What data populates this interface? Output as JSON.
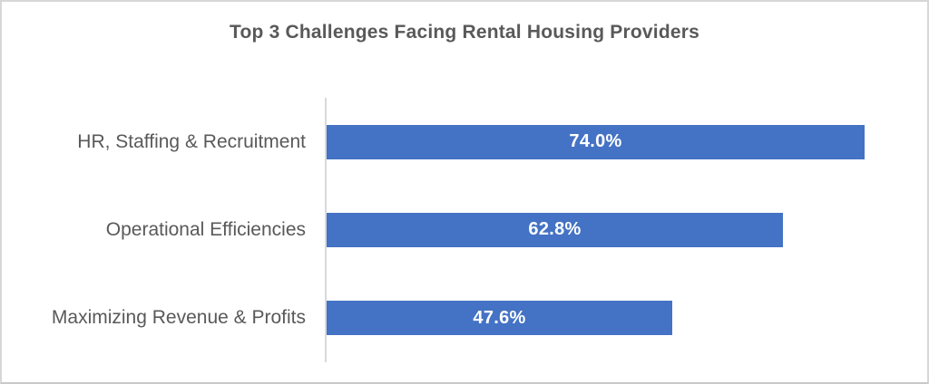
{
  "chart": {
    "title": "Top 3 Challenges Facing Rental Housing Providers"
  },
  "chart_data": {
    "type": "bar",
    "orientation": "horizontal",
    "title": "Top 3 Challenges Facing Rental Housing Providers",
    "categories": [
      "HR, Staffing & Recruitment",
      "Operational Efficiencies",
      "Maximizing Revenue & Profits"
    ],
    "values": [
      74.0,
      62.8,
      47.6
    ],
    "value_labels": [
      "74.0%",
      "62.8%",
      "47.6%"
    ],
    "value_label_position": "inside-center",
    "xlabel": "",
    "ylabel": "",
    "xlim": [
      0,
      83
    ],
    "grid": false,
    "legend": false,
    "colors": {
      "bar_fill": "#4472C4",
      "value_label_text": "#FFFFFF",
      "category_label_text": "#595959",
      "title_text": "#595959",
      "axis_line": "#D9D9D9",
      "background": "#FFFFFF",
      "frame_border": "#D7D7D7"
    }
  }
}
